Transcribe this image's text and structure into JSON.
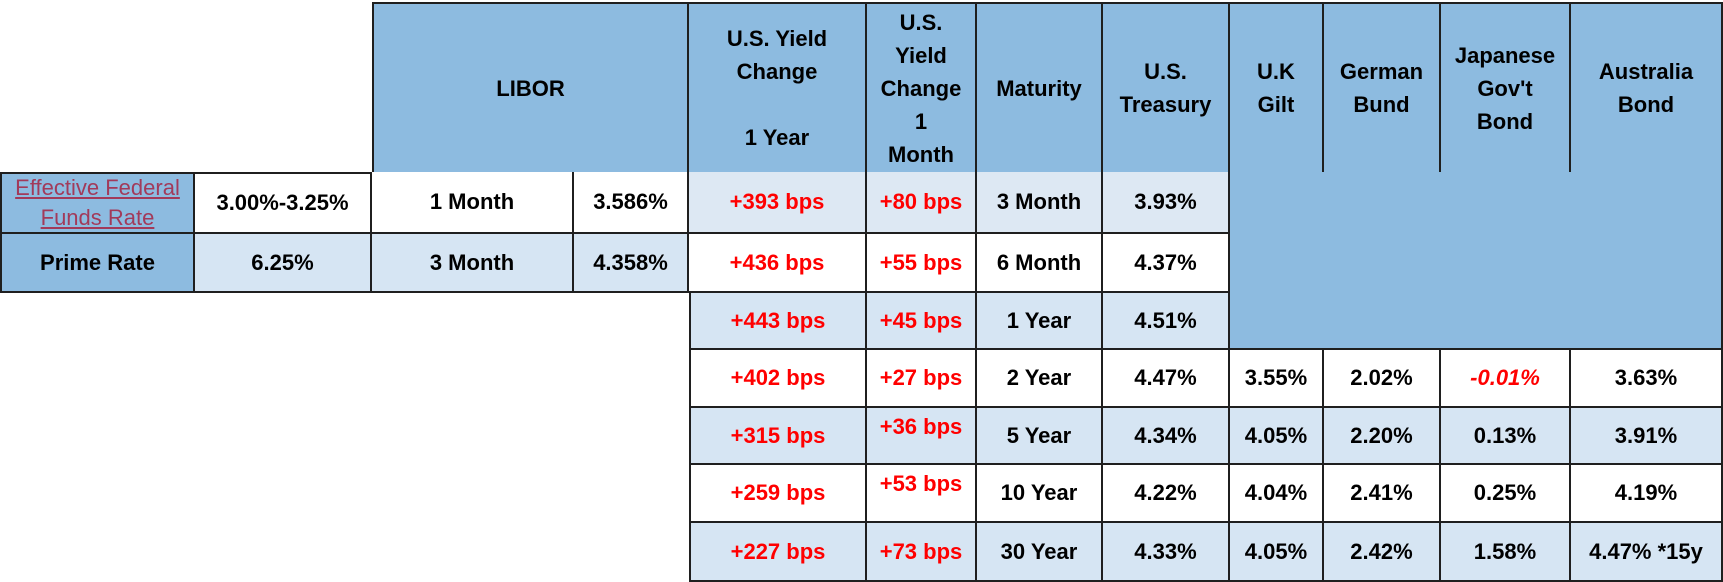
{
  "headers": {
    "libor": "LIBOR",
    "yield_1y": [
      "U.S. Yield",
      "Change",
      "",
      "1 Year"
    ],
    "yield_1m": [
      "U.S.",
      "Yield",
      "Change",
      "1",
      "Month"
    ],
    "maturity": "Maturity",
    "us_treasury": [
      "U.S.",
      "Treasury"
    ],
    "uk_gilt": [
      "U.K",
      "Gilt"
    ],
    "german_bund": [
      "German",
      "Bund"
    ],
    "japanese_bond": [
      "Japanese",
      "Gov't",
      "Bond"
    ],
    "australia_bond": [
      "Australia",
      "Bond"
    ]
  },
  "left": {
    "fed_funds": {
      "label_line1": "Effective Federal",
      "label_line2": "Funds Rate",
      "value": "3.00%-3.25%"
    },
    "prime": {
      "label": "Prime Rate",
      "value": "6.25%"
    }
  },
  "libor_rows": [
    {
      "term": "1 Month",
      "rate": "3.586%"
    },
    {
      "term": "3 Month",
      "rate": "4.358%"
    }
  ],
  "rows": [
    {
      "y1": "+393 bps",
      "m1": "+80 bps",
      "maturity": "3 Month",
      "treasury": "3.93%"
    },
    {
      "y1": "+436 bps",
      "m1": "+55 bps",
      "maturity": "6 Month",
      "treasury": "4.37%"
    },
    {
      "y1": "+443 bps",
      "m1": "+45 bps",
      "maturity": "1 Year",
      "treasury": "4.51%"
    },
    {
      "y1": "+402 bps",
      "m1": "+27 bps",
      "maturity": "2 Year",
      "treasury": "4.47%",
      "gilt": "3.55%",
      "bund": "2.02%",
      "jgb": "-0.01%",
      "aus": "3.63%"
    },
    {
      "y1": "+315 bps",
      "m1": "+36 bps",
      "maturity": "5 Year",
      "treasury": "4.34%",
      "gilt": "4.05%",
      "bund": "2.20%",
      "jgb": "0.13%",
      "aus": "3.91%"
    },
    {
      "y1": "+259 bps",
      "m1": "+53 bps",
      "maturity": "10 Year",
      "treasury": "4.22%",
      "gilt": "4.04%",
      "bund": "2.41%",
      "jgb": "0.25%",
      "aus": "4.19%"
    },
    {
      "y1": "+227 bps",
      "m1": "+73 bps",
      "maturity": "30 Year",
      "treasury": "4.33%",
      "gilt": "4.05%",
      "bund": "2.42%",
      "jgb": "1.58%",
      "aus": "4.47% *15y"
    }
  ],
  "colors": {
    "header_blue": "#8dbbe0",
    "light_blue": "#d6e5f3",
    "lavender": "#dde8f3",
    "change_red": "#ff0000",
    "link": "#a23a5a"
  }
}
